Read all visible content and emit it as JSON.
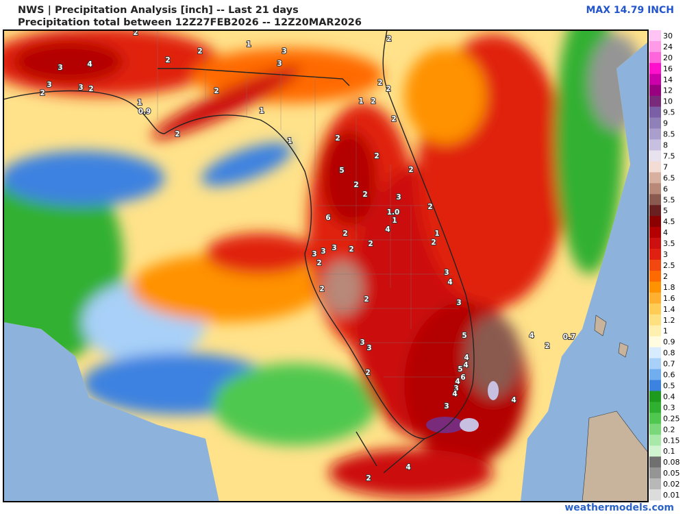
{
  "header": {
    "line1": "NWS | Precipitation Analysis [inch] -- Last 21 days",
    "line2": "Precipitation total between 12Z27FEB2026 -- 12Z20MAR2026",
    "max": "MAX 14.79 INCH"
  },
  "footer": "weathermodels.com",
  "legend": [
    {
      "label": "30",
      "color": "#ffc4f4"
    },
    {
      "label": "24",
      "color": "#ff9ae8"
    },
    {
      "label": "20",
      "color": "#ff66dc"
    },
    {
      "label": "16",
      "color": "#ff10cc"
    },
    {
      "label": "14",
      "color": "#cc00aa"
    },
    {
      "label": "12",
      "color": "#99007f"
    },
    {
      "label": "10",
      "color": "#7a2a7a"
    },
    {
      "label": "9.5",
      "color": "#7a5ea6"
    },
    {
      "label": "9",
      "color": "#9080b8"
    },
    {
      "label": "8.5",
      "color": "#aa9ecc"
    },
    {
      "label": "8",
      "color": "#c8c0e0"
    },
    {
      "label": "7.5",
      "color": "#e8e2ef"
    },
    {
      "label": "7",
      "color": "#f2dcd4"
    },
    {
      "label": "6.5",
      "color": "#d8b0a0"
    },
    {
      "label": "6",
      "color": "#b88878"
    },
    {
      "label": "5.5",
      "color": "#8a5a50"
    },
    {
      "label": "5",
      "color": "#6a2020"
    },
    {
      "label": "4.5",
      "color": "#8b0000"
    },
    {
      "label": "4",
      "color": "#b30000"
    },
    {
      "label": "3.5",
      "color": "#cc1010"
    },
    {
      "label": "3",
      "color": "#e02010"
    },
    {
      "label": "2.5",
      "color": "#f04810"
    },
    {
      "label": "2",
      "color": "#ff6a00"
    },
    {
      "label": "1.8",
      "color": "#ff9200"
    },
    {
      "label": "1.6",
      "color": "#ffb030"
    },
    {
      "label": "1.4",
      "color": "#ffcc55"
    },
    {
      "label": "1.2",
      "color": "#ffe080"
    },
    {
      "label": "1",
      "color": "#fff0b0"
    },
    {
      "label": "0.9",
      "color": "#fffce0"
    },
    {
      "label": "0.8",
      "color": "#d8ecff"
    },
    {
      "label": "0.7",
      "color": "#a8d0f8"
    },
    {
      "label": "0.6",
      "color": "#70aef0"
    },
    {
      "label": "0.5",
      "color": "#3c82e0"
    },
    {
      "label": "0.4",
      "color": "#1e9a1e"
    },
    {
      "label": "0.3",
      "color": "#30b030"
    },
    {
      "label": "0.25",
      "color": "#50c850"
    },
    {
      "label": "0.2",
      "color": "#7ad87a"
    },
    {
      "label": "0.15",
      "color": "#a8e8a8"
    },
    {
      "label": "0.1",
      "color": "#d0f4d0"
    },
    {
      "label": "0.08",
      "color": "#707070"
    },
    {
      "label": "0.05",
      "color": "#959595"
    },
    {
      "label": "0.02",
      "color": "#b8b8b8"
    },
    {
      "label": "0.01",
      "color": "#dcdcdc"
    }
  ],
  "map_labels": [
    "2",
    "2",
    "1",
    "3",
    "3",
    "2",
    "3",
    "4",
    "3",
    "3",
    "2",
    "2",
    "2",
    "2",
    "1",
    "0.9",
    "1",
    "2",
    "1",
    "2",
    "2",
    "2",
    "1",
    "2",
    "2",
    "2",
    "5",
    "2",
    "2",
    "2",
    "3",
    "2",
    "1.0",
    "1",
    "6",
    "4",
    "2",
    "2",
    "1",
    "2",
    "3",
    "3",
    "3",
    "2",
    "2",
    "3",
    "4",
    "2",
    "3",
    "2",
    "3",
    "3",
    "5",
    "4",
    "0.7",
    "2",
    "4",
    "5",
    "4",
    "6",
    "4",
    "2",
    "3",
    "4",
    "3",
    "4",
    "4",
    "2"
  ]
}
